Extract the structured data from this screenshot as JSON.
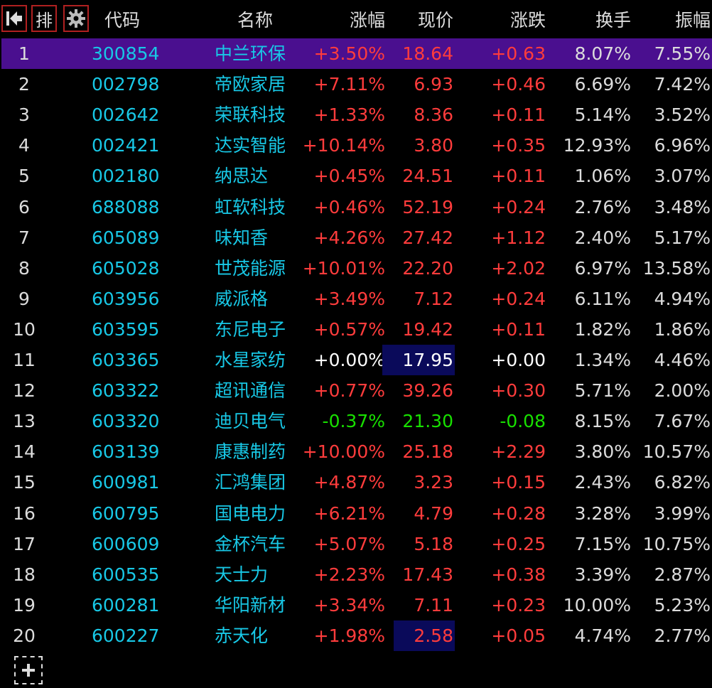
{
  "toolbar": {
    "first_icon": "first-page-icon",
    "sort_label": "排",
    "settings_icon": "gear-icon",
    "add_icon": "plus-icon"
  },
  "columns": [
    "代码",
    "名称",
    "涨幅",
    "现价",
    "涨跌",
    "换手",
    "振幅"
  ],
  "colors": {
    "background": "#000000",
    "selected_row": "#4a0f8f",
    "up": "#ff3c3c",
    "down": "#18e000",
    "code_name": "#18c8e6",
    "highlight_cell": "#0a0a5a",
    "button_border": "#b02020"
  },
  "rows": [
    {
      "idx": "1",
      "code": "300854",
      "name": "中兰环保",
      "chg": "+3.50%",
      "price": "18.64",
      "diff": "+0.63",
      "turnover": "8.07%",
      "amplitude": "7.55%",
      "dir": "up",
      "selected": true,
      "price_highlight": false
    },
    {
      "idx": "2",
      "code": "002798",
      "name": "帝欧家居",
      "chg": "+7.11%",
      "price": "6.93",
      "diff": "+0.46",
      "turnover": "6.69%",
      "amplitude": "7.42%",
      "dir": "up",
      "selected": false,
      "price_highlight": false
    },
    {
      "idx": "3",
      "code": "002642",
      "name": "荣联科技",
      "chg": "+1.33%",
      "price": "8.36",
      "diff": "+0.11",
      "turnover": "5.14%",
      "amplitude": "3.52%",
      "dir": "up",
      "selected": false,
      "price_highlight": false
    },
    {
      "idx": "4",
      "code": "002421",
      "name": "达实智能",
      "chg": "+10.14%",
      "price": "3.80",
      "diff": "+0.35",
      "turnover": "12.93%",
      "amplitude": "6.96%",
      "dir": "up",
      "selected": false,
      "price_highlight": false
    },
    {
      "idx": "5",
      "code": "002180",
      "name": "纳思达",
      "chg": "+0.45%",
      "price": "24.51",
      "diff": "+0.11",
      "turnover": "1.06%",
      "amplitude": "3.07%",
      "dir": "up",
      "selected": false,
      "price_highlight": false
    },
    {
      "idx": "6",
      "code": "688088",
      "name": "虹软科技",
      "chg": "+0.46%",
      "price": "52.19",
      "diff": "+0.24",
      "turnover": "2.76%",
      "amplitude": "3.48%",
      "dir": "up",
      "selected": false,
      "price_highlight": false
    },
    {
      "idx": "7",
      "code": "605089",
      "name": "味知香",
      "chg": "+4.26%",
      "price": "27.42",
      "diff": "+1.12",
      "turnover": "2.40%",
      "amplitude": "5.17%",
      "dir": "up",
      "selected": false,
      "price_highlight": false
    },
    {
      "idx": "8",
      "code": "605028",
      "name": "世茂能源",
      "chg": "+10.01%",
      "price": "22.20",
      "diff": "+2.02",
      "turnover": "6.97%",
      "amplitude": "13.58%",
      "dir": "up",
      "selected": false,
      "price_highlight": false
    },
    {
      "idx": "9",
      "code": "603956",
      "name": "威派格",
      "chg": "+3.49%",
      "price": "7.12",
      "diff": "+0.24",
      "turnover": "6.11%",
      "amplitude": "4.94%",
      "dir": "up",
      "selected": false,
      "price_highlight": false
    },
    {
      "idx": "10",
      "code": "603595",
      "name": "东尼电子",
      "chg": "+0.57%",
      "price": "19.42",
      "diff": "+0.11",
      "turnover": "1.82%",
      "amplitude": "1.86%",
      "dir": "up",
      "selected": false,
      "price_highlight": false
    },
    {
      "idx": "11",
      "code": "603365",
      "name": "水星家纺",
      "chg": "+0.00%",
      "price": "17.95",
      "diff": "+0.00",
      "turnover": "1.34%",
      "amplitude": "4.46%",
      "dir": "flat",
      "selected": false,
      "price_highlight": true
    },
    {
      "idx": "12",
      "code": "603322",
      "name": "超讯通信",
      "chg": "+0.77%",
      "price": "39.26",
      "diff": "+0.30",
      "turnover": "5.71%",
      "amplitude": "2.00%",
      "dir": "up",
      "selected": false,
      "price_highlight": false
    },
    {
      "idx": "13",
      "code": "603320",
      "name": "迪贝电气",
      "chg": "-0.37%",
      "price": "21.30",
      "diff": "-0.08",
      "turnover": "8.15%",
      "amplitude": "7.67%",
      "dir": "down",
      "selected": false,
      "price_highlight": false
    },
    {
      "idx": "14",
      "code": "603139",
      "name": "康惠制药",
      "chg": "+10.00%",
      "price": "25.18",
      "diff": "+2.29",
      "turnover": "3.80%",
      "amplitude": "10.57%",
      "dir": "up",
      "selected": false,
      "price_highlight": false
    },
    {
      "idx": "15",
      "code": "600981",
      "name": "汇鸿集团",
      "chg": "+4.87%",
      "price": "3.23",
      "diff": "+0.15",
      "turnover": "2.43%",
      "amplitude": "6.82%",
      "dir": "up",
      "selected": false,
      "price_highlight": false
    },
    {
      "idx": "16",
      "code": "600795",
      "name": "国电电力",
      "chg": "+6.21%",
      "price": "4.79",
      "diff": "+0.28",
      "turnover": "3.28%",
      "amplitude": "3.99%",
      "dir": "up",
      "selected": false,
      "price_highlight": false
    },
    {
      "idx": "17",
      "code": "600609",
      "name": "金杯汽车",
      "chg": "+5.07%",
      "price": "5.18",
      "diff": "+0.25",
      "turnover": "7.15%",
      "amplitude": "10.75%",
      "dir": "up",
      "selected": false,
      "price_highlight": false
    },
    {
      "idx": "18",
      "code": "600535",
      "name": "天士力",
      "chg": "+2.23%",
      "price": "17.43",
      "diff": "+0.38",
      "turnover": "3.39%",
      "amplitude": "2.87%",
      "dir": "up",
      "selected": false,
      "price_highlight": false
    },
    {
      "idx": "19",
      "code": "600281",
      "name": "华阳新材",
      "chg": "+3.34%",
      "price": "7.11",
      "diff": "+0.23",
      "turnover": "10.00%",
      "amplitude": "5.23%",
      "dir": "up",
      "selected": false,
      "price_highlight": false
    },
    {
      "idx": "20",
      "code": "600227",
      "name": "赤天化",
      "chg": "+1.98%",
      "price": "2.58",
      "diff": "+0.05",
      "turnover": "4.74%",
      "amplitude": "2.77%",
      "dir": "up",
      "selected": false,
      "price_highlight": true
    }
  ]
}
